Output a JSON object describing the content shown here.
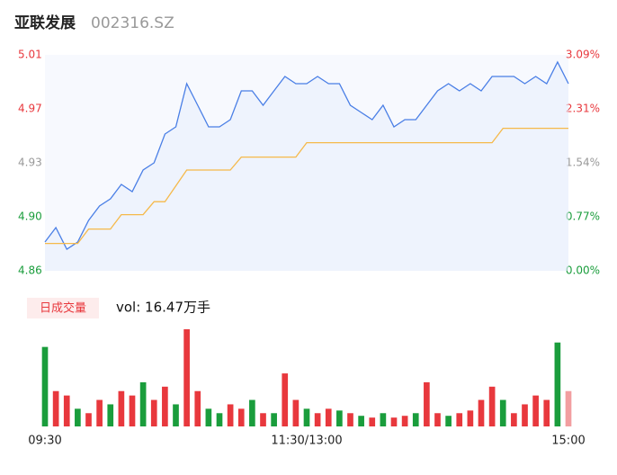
{
  "header": {
    "title": "亚联发展",
    "subtitle": "002316.SZ"
  },
  "chart_data": [
    {
      "type": "line",
      "area": true,
      "grid": false,
      "plot_background": "#f7f9fe",
      "ylim": [
        4.86,
        5.01
      ],
      "yticks": [
        {
          "value": 4.86,
          "label": "4.86"
        },
        {
          "value": 4.8975,
          "label": "4.90"
        },
        {
          "value": 4.935,
          "label": "4.93"
        },
        {
          "value": 4.9725,
          "label": "4.97"
        },
        {
          "value": 5.01,
          "label": "5.01"
        }
      ],
      "ytick_colors": [
        "#1a9d3c",
        "#1a9d3c",
        "#999999",
        "#e8383d",
        "#e8383d"
      ],
      "y2lim": [
        0,
        3.09
      ],
      "y2ticks": [
        {
          "value": 0,
          "label": "0.00%"
        },
        {
          "value": 0.7725,
          "label": "0.77%"
        },
        {
          "value": 1.545,
          "label": "1.54%"
        },
        {
          "value": 2.3175,
          "label": "2.31%"
        },
        {
          "value": 3.09,
          "label": "3.09%"
        }
      ],
      "y2tick_colors": [
        "#1a9d3c",
        "#1a9d3c",
        "#999999",
        "#e8383d",
        "#e8383d"
      ],
      "series": [
        {
          "name": "price",
          "color": "#4a7fe6",
          "values": [
            4.88,
            4.89,
            4.875,
            4.88,
            4.895,
            4.905,
            4.91,
            4.92,
            4.915,
            4.93,
            4.935,
            4.955,
            4.96,
            4.99,
            4.975,
            4.96,
            4.96,
            4.965,
            4.985,
            4.985,
            4.975,
            4.985,
            4.995,
            4.99,
            4.99,
            4.995,
            4.99,
            4.99,
            4.975,
            4.97,
            4.965,
            4.975,
            4.96,
            4.965,
            4.965,
            4.975,
            4.985,
            4.99,
            4.985,
            4.99,
            4.985,
            4.995,
            4.995,
            4.995,
            4.99,
            4.995,
            4.99,
            5.005,
            4.99
          ]
        },
        {
          "name": "average",
          "color": "#f5b94a",
          "values": [
            4.879,
            4.879,
            4.879,
            4.879,
            4.889,
            4.889,
            4.889,
            4.899,
            4.899,
            4.899,
            4.908,
            4.908,
            4.919,
            4.93,
            4.93,
            4.93,
            4.93,
            4.93,
            4.939,
            4.939,
            4.939,
            4.939,
            4.939,
            4.939,
            4.949,
            4.949,
            4.949,
            4.949,
            4.949,
            4.949,
            4.949,
            4.949,
            4.949,
            4.949,
            4.949,
            4.949,
            4.949,
            4.949,
            4.949,
            4.949,
            4.949,
            4.949,
            4.959,
            4.959,
            4.959,
            4.959,
            4.959,
            4.959,
            4.959
          ]
        }
      ]
    },
    {
      "type": "bar",
      "button": "日成交量",
      "summary": "vol: 16.47万手",
      "categories": [
        "09:30",
        null,
        null,
        null,
        null,
        null,
        null,
        null,
        null,
        null,
        null,
        null,
        null,
        null,
        null,
        null,
        null,
        null,
        null,
        null,
        null,
        null,
        null,
        null,
        "11:30/13:00",
        null,
        null,
        null,
        null,
        null,
        null,
        null,
        null,
        null,
        null,
        null,
        null,
        null,
        null,
        null,
        null,
        null,
        null,
        null,
        null,
        null,
        null,
        null,
        "15:00"
      ],
      "values": [
        9000,
        4000,
        3500,
        2000,
        1500,
        3000,
        2500,
        4000,
        3500,
        5000,
        3000,
        4500,
        2500,
        11000,
        4000,
        2000,
        1500,
        2500,
        2000,
        3000,
        1500,
        1500,
        6000,
        3000,
        2000,
        1500,
        2000,
        1800,
        1500,
        1200,
        1000,
        1500,
        1000,
        1200,
        1500,
        5000,
        1500,
        1200,
        1500,
        1800,
        3000,
        4500,
        3000,
        1500,
        2500,
        3500,
        3000,
        9500,
        4000
      ],
      "colors": [
        "#1a9d3c",
        "#e8383d",
        "#e8383d",
        "#1a9d3c",
        "#e8383d",
        "#e8383d",
        "#1a9d3c",
        "#e8383d",
        "#e8383d",
        "#1a9d3c",
        "#e8383d",
        "#e8383d",
        "#1a9d3c",
        "#e8383d",
        "#e8383d",
        "#1a9d3c",
        "#1a9d3c",
        "#e8383d",
        "#e8383d",
        "#1a9d3c",
        "#e8383d",
        "#1a9d3c",
        "#e8383d",
        "#e8383d",
        "#1a9d3c",
        "#e8383d",
        "#e8383d",
        "#1a9d3c",
        "#e8383d",
        "#1a9d3c",
        "#e8383d",
        "#1a9d3c",
        "#e8383d",
        "#e8383d",
        "#1a9d3c",
        "#e8383d",
        "#e8383d",
        "#1a9d3c",
        "#e8383d",
        "#e8383d",
        "#e8383d",
        "#e8383d",
        "#1a9d3c",
        "#e8383d",
        "#e8383d",
        "#e8383d",
        "#e8383d",
        "#1a9d3c",
        "#f29ea0"
      ]
    }
  ]
}
